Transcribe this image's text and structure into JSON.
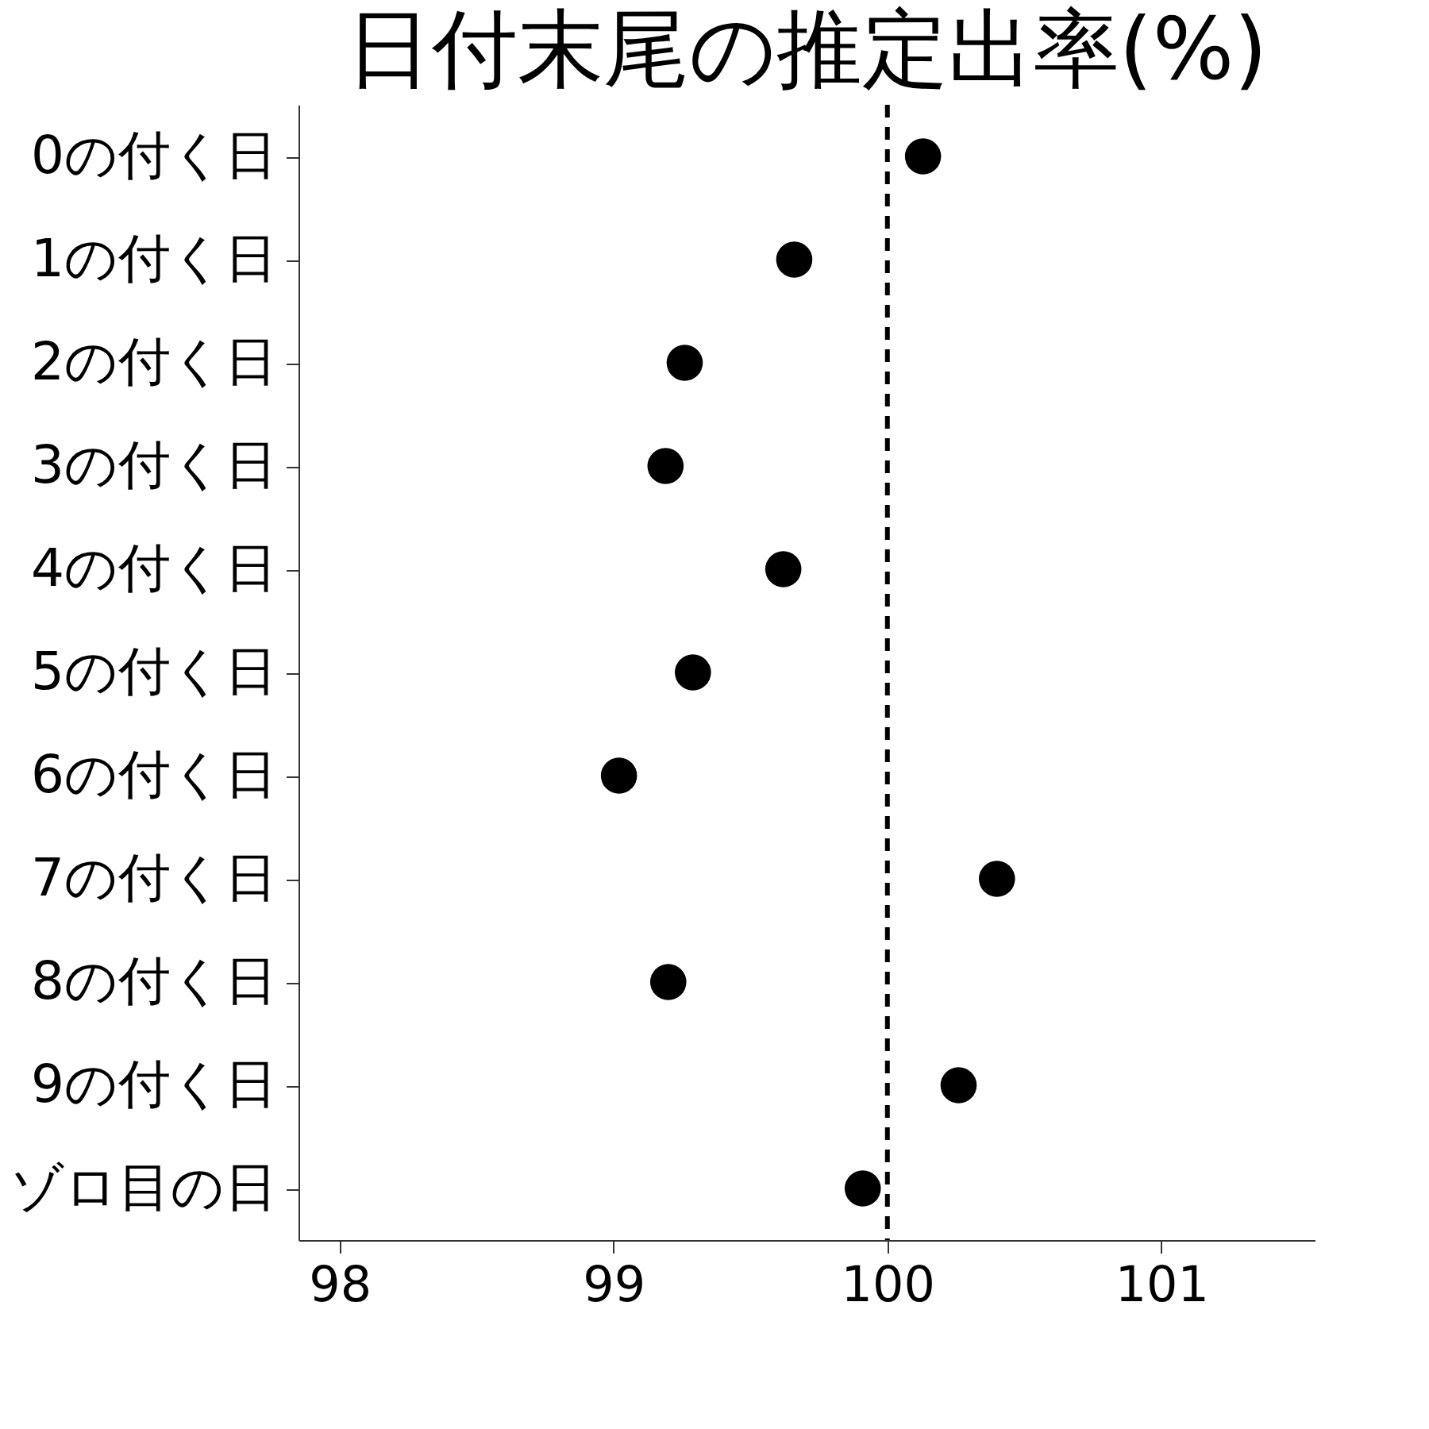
{
  "chart_data": {
    "type": "scatter",
    "title": "日付末尾の推定出率(%)",
    "orientation": "horizontal",
    "categories": [
      "0の付く日",
      "1の付く日",
      "2の付く日",
      "3の付く日",
      "4の付く日",
      "5の付く日",
      "6の付く日",
      "7の付く日",
      "8の付く日",
      "9の付く日",
      "ゾロ目の日"
    ],
    "series": [
      {
        "color": "#000000",
        "values": [
          100.13,
          99.66,
          99.26,
          99.19,
          99.62,
          99.29,
          99.02,
          100.4,
          99.2,
          100.26,
          99.91
        ]
      }
    ],
    "xlim": [
      97.85,
      101.56
    ],
    "xticks": [
      98,
      99,
      100,
      101
    ],
    "ref_lines": [
      {
        "axis": "x",
        "value": 100,
        "color": "#000000",
        "line_style": "dashed"
      }
    ],
    "grid": false,
    "legend": false,
    "marker": "circle"
  }
}
